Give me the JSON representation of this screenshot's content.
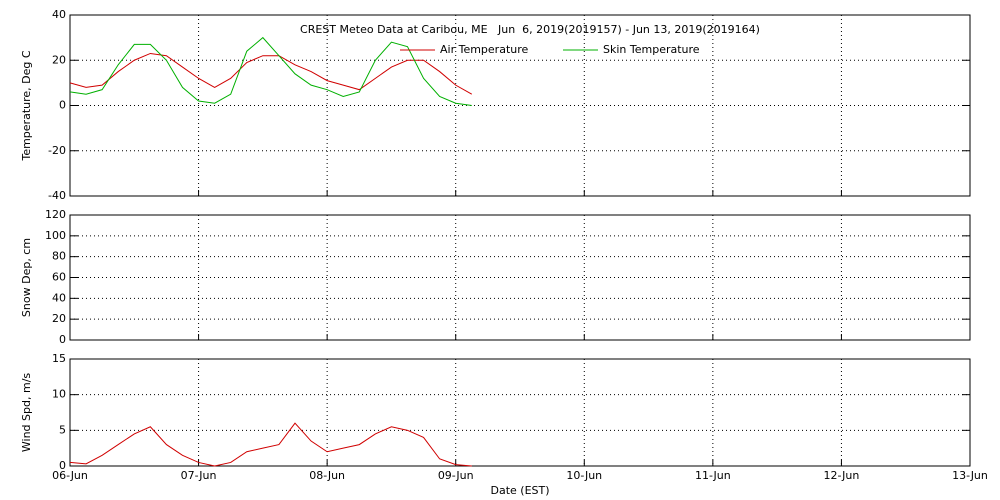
{
  "chart_data": [
    {
      "type": "line",
      "title": "CREST Meteo Data at Caribou, ME   Jun  6, 2019(2019157) - Jun 13, 2019(2019164)",
      "ylabel": "Temperature, Deg C",
      "xlim": [
        0,
        7
      ],
      "ylim": [
        -40,
        40
      ],
      "yticks": [
        -40,
        -20,
        0,
        20,
        40
      ],
      "grid": true,
      "x": [
        0,
        0.125,
        0.25,
        0.375,
        0.5,
        0.625,
        0.75,
        0.875,
        1.0,
        1.125,
        1.25,
        1.375,
        1.5,
        1.625,
        1.75,
        1.875,
        2.0,
        2.125,
        2.25,
        2.375,
        2.5,
        2.625,
        2.75,
        2.875,
        3.0,
        3.125
      ],
      "series": [
        {
          "name": "Air Temperature",
          "color": "#d00000",
          "values": [
            10,
            8,
            9,
            15,
            20,
            23,
            22,
            17,
            12,
            8,
            12,
            19,
            22,
            22,
            18,
            15,
            11,
            9,
            7,
            12,
            17,
            20,
            20,
            15,
            9,
            5
          ]
        },
        {
          "name": "Skin Temperature",
          "color": "#00b000",
          "values": [
            6,
            5,
            7,
            18,
            27,
            27,
            20,
            8,
            2,
            1,
            5,
            24,
            30,
            22,
            14,
            9,
            7,
            4,
            6,
            20,
            28,
            26,
            12,
            4,
            1,
            0
          ]
        }
      ]
    },
    {
      "type": "line",
      "ylabel": "Snow Dep, cm",
      "xlim": [
        0,
        7
      ],
      "ylim": [
        0,
        120
      ],
      "yticks": [
        0,
        20,
        40,
        60,
        80,
        100,
        120
      ],
      "grid": true,
      "x": [],
      "series": []
    },
    {
      "type": "line",
      "ylabel": "Wind Spd, m/s",
      "xlabel": "Date (EST)",
      "xlim": [
        0,
        7
      ],
      "ylim": [
        0,
        15
      ],
      "yticks": [
        0,
        5,
        10,
        15
      ],
      "grid": true,
      "xticks": [
        {
          "value": 0,
          "label": "06-Jun"
        },
        {
          "value": 1,
          "label": "07-Jun"
        },
        {
          "value": 2,
          "label": "08-Jun"
        },
        {
          "value": 3,
          "label": "09-Jun"
        },
        {
          "value": 4,
          "label": "10-Jun"
        },
        {
          "value": 5,
          "label": "11-Jun"
        },
        {
          "value": 6,
          "label": "12-Jun"
        },
        {
          "value": 7,
          "label": "13-Jun"
        }
      ],
      "x": [
        0,
        0.125,
        0.25,
        0.375,
        0.5,
        0.625,
        0.75,
        0.875,
        1.0,
        1.125,
        1.25,
        1.375,
        1.5,
        1.625,
        1.75,
        1.875,
        2.0,
        2.125,
        2.25,
        2.375,
        2.5,
        2.625,
        2.75,
        2.875,
        3.0,
        3.125
      ],
      "series": [
        {
          "name": "Wind Speed",
          "color": "#d00000",
          "values": [
            0.5,
            0.3,
            1.5,
            3,
            4.5,
            5.5,
            3,
            1.5,
            0.5,
            0,
            0.5,
            2,
            2.5,
            3,
            6,
            3.5,
            2,
            2.5,
            3,
            4.5,
            5.5,
            5,
            4,
            1,
            0.2,
            0
          ]
        }
      ]
    }
  ]
}
